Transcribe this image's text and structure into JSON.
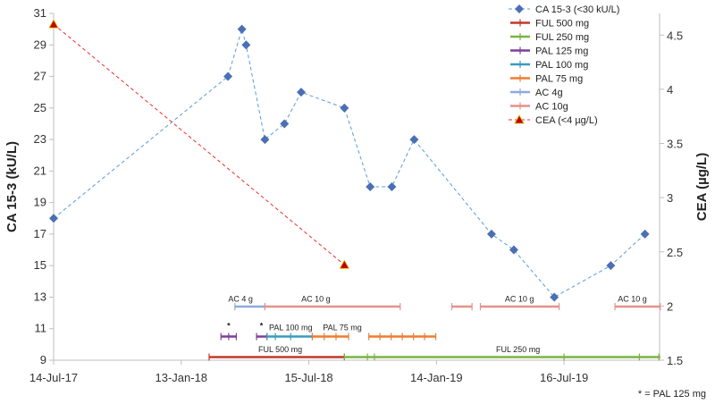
{
  "chart_data": {
    "type": "line",
    "x_ticks": [
      {
        "label": "14-Jul-17",
        "day": 0
      },
      {
        "label": "13-Jan-18",
        "day": 183
      },
      {
        "label": "15-Jul-18",
        "day": 366
      },
      {
        "label": "14-Jan-19",
        "day": 549
      },
      {
        "label": "16-Jul-19",
        "day": 732
      }
    ],
    "x_range_days": [
      0,
      869
    ],
    "y_left": {
      "title": "CA 15-3 (kU/L)",
      "range": [
        9,
        31
      ],
      "ticks": [
        9,
        11,
        13,
        15,
        17,
        19,
        21,
        23,
        25,
        27,
        29,
        31
      ]
    },
    "y_right": {
      "title": "CEA (µg/L)",
      "range": [
        1.5,
        4.7
      ],
      "ticks": [
        1.5,
        2,
        2.5,
        3,
        3.5,
        4,
        4.5
      ],
      "tick_labels": [
        "1.5",
        "2",
        "2.5",
        "3",
        "3.5",
        "4",
        "4.5"
      ]
    },
    "series": [
      {
        "name": "CA 15-3 (<30 kU/L)",
        "axis": "left",
        "color": "#5b9bd5",
        "marker_color": "#4a6fb5",
        "points": [
          {
            "day": 0,
            "value": 18
          },
          {
            "day": 250,
            "value": 27
          },
          {
            "day": 270,
            "value": 30
          },
          {
            "day": 276,
            "value": 29
          },
          {
            "day": 303,
            "value": 23
          },
          {
            "day": 331,
            "value": 24
          },
          {
            "day": 355,
            "value": 26
          },
          {
            "day": 417,
            "value": 25
          },
          {
            "day": 454,
            "value": 20
          },
          {
            "day": 485,
            "value": 20
          },
          {
            "day": 517,
            "value": 23
          },
          {
            "day": 628,
            "value": 17
          },
          {
            "day": 660,
            "value": 16
          },
          {
            "day": 718,
            "value": 13
          },
          {
            "day": 799,
            "value": 15
          },
          {
            "day": 848,
            "value": 17
          }
        ]
      },
      {
        "name": "CEA (<4 µg/L)",
        "axis": "right",
        "color": "#e8312f",
        "marker_color": "#c00000",
        "points": [
          {
            "day": 0,
            "value": 4.6
          },
          {
            "day": 417,
            "value": 2.38
          }
        ]
      }
    ],
    "treatments": [
      {
        "name": "FUL 500 mg",
        "color": "#c0392b",
        "row_value": 9.2,
        "label_day": 340,
        "label": "FUL 500 mg",
        "segments": [
          [
            223,
            417
          ]
        ],
        "tick_days": [
          223,
          417
        ]
      },
      {
        "name": "FUL 250 mg",
        "color": "#7cb342",
        "row_value": 9.2,
        "label_day": 680,
        "label": "FUL 250 mg",
        "segments": [
          [
            417,
            870
          ]
        ],
        "tick_days": [
          417,
          450,
          460,
          732,
          840,
          868
        ]
      },
      {
        "name": "PAL 125 mg",
        "color": "#7e3f98",
        "row_value": 10.5,
        "label_day": null,
        "label": "",
        "segments": [
          [
            240,
            262
          ],
          [
            291,
            306
          ]
        ],
        "tick_days": [
          240,
          251,
          262,
          291,
          306
        ]
      },
      {
        "name": "PAL 100 mg",
        "color": "#3a9bbd",
        "row_value": 10.5,
        "label_day": 340,
        "label": "PAL 100 mg",
        "segments": [
          [
            306,
            371
          ]
        ],
        "tick_days": [
          306,
          318,
          340,
          371
        ]
      },
      {
        "name": "PAL 75 mg",
        "color": "#ed7d31",
        "row_value": 10.5,
        "label_day": 405,
        "label": "PAL 75 mg",
        "segments": [
          [
            371,
            423
          ],
          [
            452,
            548
          ]
        ],
        "tick_days": [
          371,
          388,
          405,
          423,
          452,
          468,
          484,
          500,
          516,
          532,
          548
        ]
      },
      {
        "name": "AC 4g",
        "color": "#8faadc",
        "row_value": 12.4,
        "label_day": 266,
        "label": "AC 4 g",
        "segments": [
          [
            260,
            303
          ]
        ],
        "tick_days": [
          260,
          303
        ]
      },
      {
        "name": "AC 10g",
        "color": "#e6918a",
        "row_value": 12.4,
        "label_day": 356,
        "label": "AC 10 g",
        "segments": [
          [
            303,
            497
          ],
          [
            571,
            600
          ],
          [
            612,
            725
          ],
          [
            805,
            870
          ]
        ],
        "tick_days": [
          303,
          497,
          571,
          600,
          612,
          725,
          805,
          870
        ]
      }
    ],
    "segment_labels": [
      {
        "text": "AC 4 g",
        "day": 268,
        "value": 12.7
      },
      {
        "text": "AC 10 g",
        "day": 376,
        "value": 12.7
      },
      {
        "text": "AC 10 g",
        "day": 668,
        "value": 12.7
      },
      {
        "text": "AC 10 g",
        "day": 830,
        "value": 12.7
      },
      {
        "text": "PAL 100 mg",
        "day": 340,
        "value": 10.9
      },
      {
        "text": "PAL 75 mg",
        "day": 414,
        "value": 10.9
      },
      {
        "text": "FUL 500 mg",
        "day": 325,
        "value": 9.5
      },
      {
        "text": "FUL 250 mg",
        "day": 666,
        "value": 9.5
      }
    ],
    "asterisks": [
      {
        "text": "*",
        "day": 251,
        "value": 11.0
      },
      {
        "text": "*",
        "day": 298,
        "value": 11.0
      }
    ],
    "footnote": "* = PAL 125 mg",
    "legend": [
      {
        "label": "CA 15-3 (<30 kU/L)",
        "kind": "diamond-dash",
        "color": "#5b9bd5",
        "marker_color": "#4a6fb5"
      },
      {
        "label": "FUL 500 mg",
        "kind": "bar",
        "color": "#c0392b"
      },
      {
        "label": "FUL 250 mg",
        "kind": "bar",
        "color": "#7cb342"
      },
      {
        "label": "PAL 125 mg",
        "kind": "bar",
        "color": "#7e3f98"
      },
      {
        "label": "PAL 100 mg",
        "kind": "bar",
        "color": "#3a9bbd"
      },
      {
        "label": "PAL 75 mg",
        "kind": "bar",
        "color": "#ed7d31"
      },
      {
        "label": "AC 4g",
        "kind": "bar",
        "color": "#8faadc"
      },
      {
        "label": "AC 10g",
        "kind": "bar",
        "color": "#e6918a"
      },
      {
        "label": "CEA (<4 µg/L)",
        "kind": "triangle-dash",
        "color": "#e8312f",
        "marker_color": "#c00000"
      }
    ],
    "legend_position": "top-right"
  }
}
